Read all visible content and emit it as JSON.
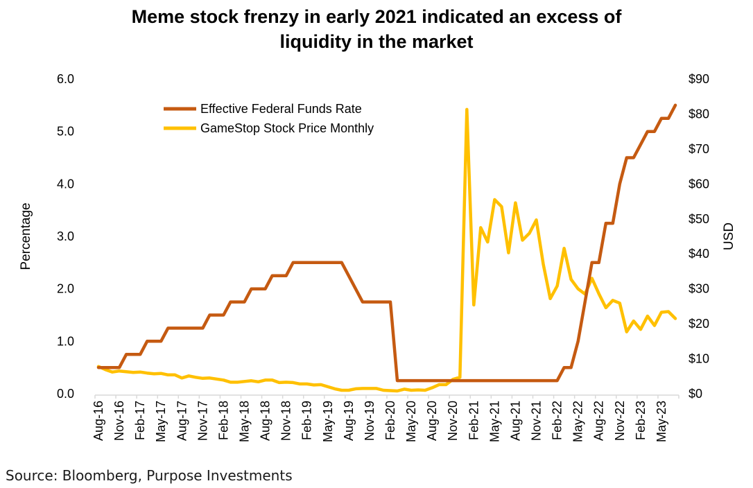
{
  "title_lines": [
    "Meme stock frenzy in early 2021 indicated an excess of",
    "liquidity in the market"
  ],
  "source_note": "Source: Bloomberg, Purpose Investments",
  "colors": {
    "effr_line": "#C55A11",
    "gme_line": "#FFC000",
    "axis_line": "#D9D9D9",
    "text": "#000000"
  },
  "chart_data": {
    "type": "line",
    "x_start": "Aug-16",
    "x_end": "Jul-23",
    "months_count": 84,
    "xtick_every_months": 3,
    "xtick_labels": [
      "Aug-16",
      "Nov-16",
      "Feb-17",
      "May-17",
      "Aug-17",
      "Nov-17",
      "Feb-18",
      "May-18",
      "Aug-18",
      "Nov-18",
      "Feb-19",
      "May-19",
      "Aug-19",
      "Nov-19",
      "Feb-20",
      "May-20",
      "Aug-20",
      "Nov-20",
      "Feb-21",
      "May-21",
      "Aug-21",
      "Nov-21",
      "Feb-22",
      "May-22",
      "Aug-22",
      "Nov-22",
      "Feb-23",
      "May-23"
    ],
    "left_axis": {
      "label": "Percentage",
      "min": 0,
      "max": 6,
      "tick_labels": [
        "0.0",
        "1.0",
        "2.0",
        "3.0",
        "4.0",
        "5.0",
        "6.0"
      ]
    },
    "right_axis": {
      "label": "USD",
      "min": 0,
      "max": 90,
      "tick_labels": [
        "$0",
        "$10",
        "$20",
        "$30",
        "$40",
        "$50",
        "$60",
        "$70",
        "$80",
        "$90"
      ]
    },
    "grid": false,
    "legend_position": "top-left-inside",
    "series": [
      {
        "name": "Effective Federal Funds Rate",
        "axis": "left",
        "color": "#C55A11",
        "values": [
          0.5,
          0.5,
          0.5,
          0.5,
          0.75,
          0.75,
          0.75,
          1.0,
          1.0,
          1.0,
          1.25,
          1.25,
          1.25,
          1.25,
          1.25,
          1.25,
          1.5,
          1.5,
          1.5,
          1.75,
          1.75,
          1.75,
          2.0,
          2.0,
          2.0,
          2.25,
          2.25,
          2.25,
          2.5,
          2.5,
          2.5,
          2.5,
          2.5,
          2.5,
          2.5,
          2.5,
          2.25,
          2.0,
          1.75,
          1.75,
          1.75,
          1.75,
          1.75,
          0.25,
          0.25,
          0.25,
          0.25,
          0.25,
          0.25,
          0.25,
          0.25,
          0.25,
          0.25,
          0.25,
          0.25,
          0.25,
          0.25,
          0.25,
          0.25,
          0.25,
          0.25,
          0.25,
          0.25,
          0.25,
          0.25,
          0.25,
          0.25,
          0.5,
          0.5,
          1.0,
          1.75,
          2.5,
          2.5,
          3.25,
          3.25,
          4.0,
          4.5,
          4.5,
          4.75,
          5.0,
          5.0,
          5.25,
          5.25,
          5.5
        ]
      },
      {
        "name": "GameStop Stock Price Monthly",
        "axis": "right",
        "color": "#FFC000",
        "values": [
          7.8,
          6.9,
          6.2,
          6.5,
          6.3,
          6.1,
          6.2,
          5.9,
          5.7,
          5.8,
          5.4,
          5.4,
          4.5,
          5.1,
          4.7,
          4.4,
          4.5,
          4.2,
          3.9,
          3.3,
          3.3,
          3.5,
          3.7,
          3.4,
          3.9,
          3.9,
          3.2,
          3.3,
          3.2,
          2.8,
          2.8,
          2.5,
          2.6,
          2.0,
          1.4,
          1.0,
          1.0,
          1.4,
          1.5,
          1.5,
          1.5,
          1.0,
          0.9,
          0.8,
          1.3,
          1.0,
          1.1,
          1.0,
          1.7,
          2.6,
          2.6,
          4.1,
          4.7,
          81.3,
          25.4,
          47.5,
          43.4,
          55.5,
          53.5,
          40.3,
          54.6,
          43.9,
          45.9,
          49.7,
          37.1,
          27.2,
          30.8,
          41.6,
          32.7,
          30.0,
          28.5,
          33.0,
          28.6,
          24.6,
          26.7,
          25.9,
          17.7,
          20.8,
          18.4,
          22.2,
          19.5,
          23.3,
          23.5,
          21.5
        ]
      }
    ]
  }
}
